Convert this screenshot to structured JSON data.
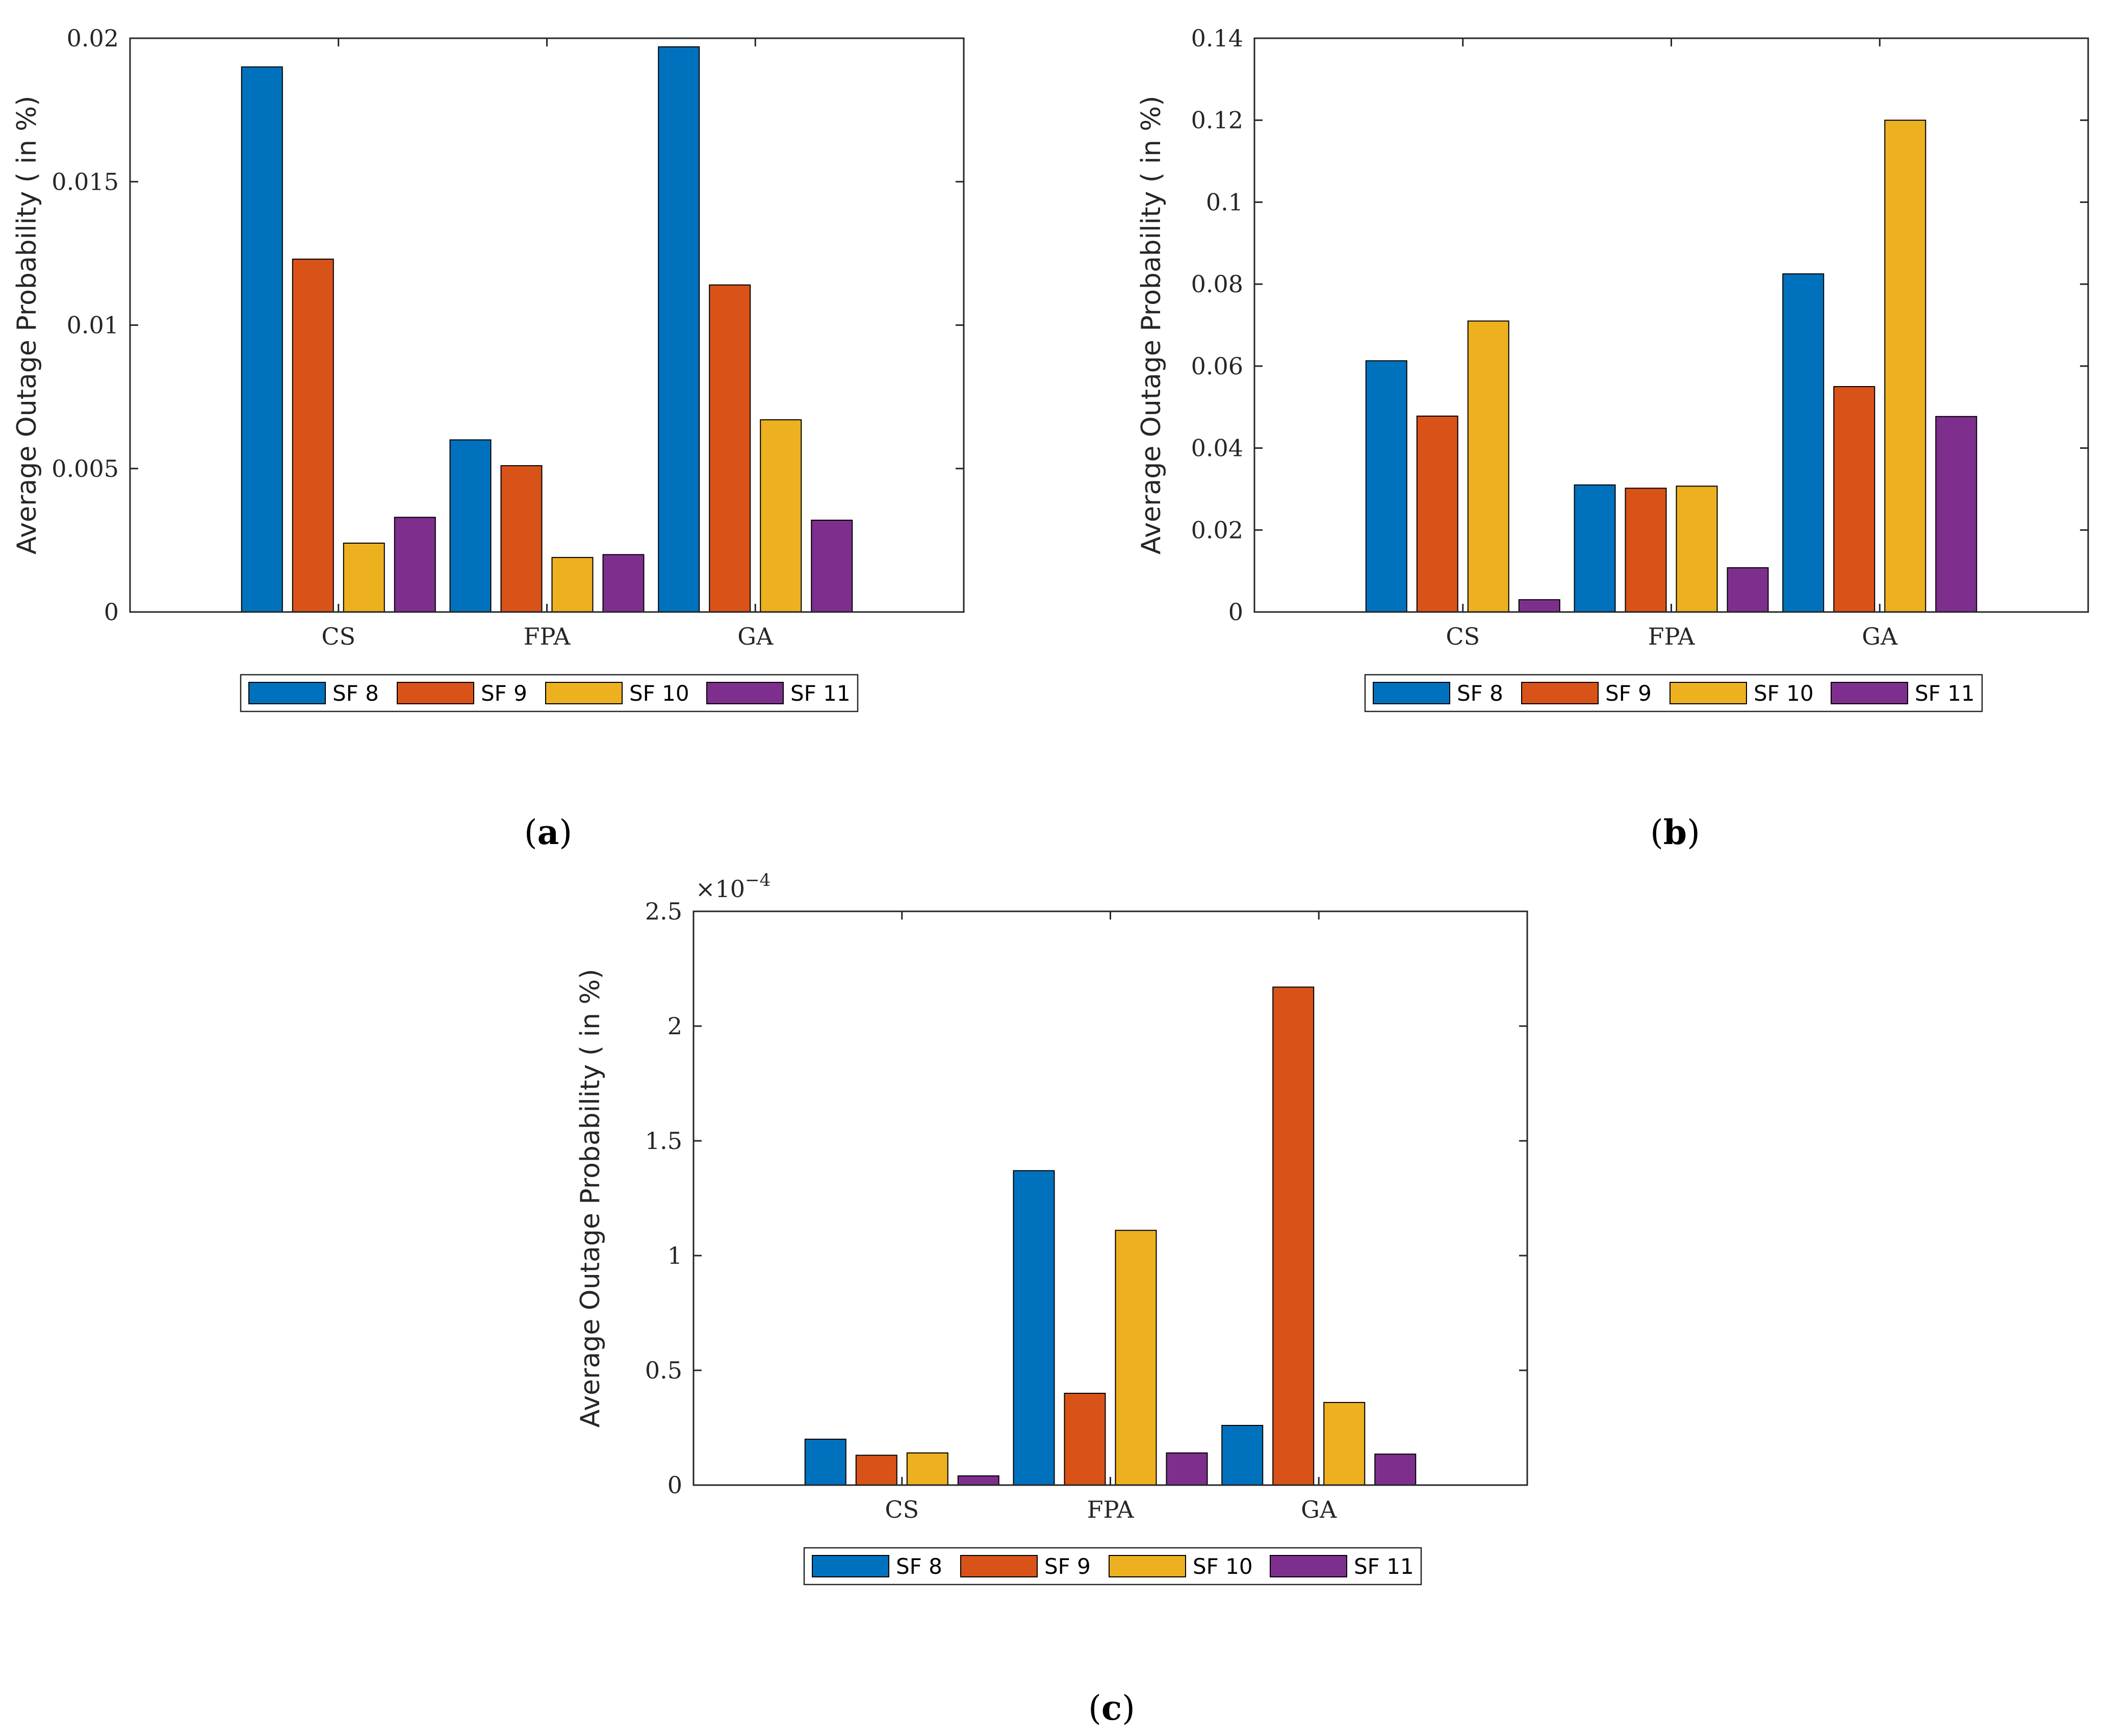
{
  "figure": {
    "panels": [
      "a",
      "b",
      "c"
    ]
  },
  "colors": {
    "SF 8": "#0072BD",
    "SF 9": "#D95319",
    "SF 10": "#EDB120",
    "SF 11": "#7E2F8E",
    "axis": "#262626"
  },
  "chart_data": [
    {
      "panel": "a",
      "type": "bar",
      "caption": {
        "open": "(",
        "letter": "a",
        "close": ")"
      },
      "ylabel": "Average Outage Probability ( in %)",
      "xlabel": "",
      "categories": [
        "CS",
        "FPA",
        "GA"
      ],
      "ylim": [
        0,
        0.02
      ],
      "yticks": [
        0,
        0.005,
        0.01,
        0.015,
        0.02
      ],
      "ytick_labels": [
        "0",
        "0.005",
        "0.01",
        "0.015",
        "0.02"
      ],
      "exponent_label": "",
      "legend_position": "bottom-outside",
      "series": [
        {
          "name": "SF 8",
          "values": [
            0.019,
            0.006,
            0.0197
          ]
        },
        {
          "name": "SF 9",
          "values": [
            0.0123,
            0.0051,
            0.0114
          ]
        },
        {
          "name": "SF 10",
          "values": [
            0.0024,
            0.0019,
            0.0067
          ]
        },
        {
          "name": "SF 11",
          "values": [
            0.0033,
            0.002,
            0.0032
          ]
        }
      ]
    },
    {
      "panel": "b",
      "type": "bar",
      "caption": {
        "open": "(",
        "letter": "b",
        "close": ")"
      },
      "ylabel": "Average Outage Probability ( in %)",
      "xlabel": "",
      "categories": [
        "CS",
        "FPA",
        "GA"
      ],
      "ylim": [
        0,
        0.14
      ],
      "yticks": [
        0,
        0.02,
        0.04,
        0.06,
        0.08,
        0.1,
        0.12,
        0.14
      ],
      "ytick_labels": [
        "0",
        "0.02",
        "0.04",
        "0.06",
        "0.08",
        "0.1",
        "0.12",
        "0.14"
      ],
      "exponent_label": "",
      "legend_position": "bottom-outside",
      "series": [
        {
          "name": "SF 8",
          "values": [
            0.0613,
            0.031,
            0.0825
          ]
        },
        {
          "name": "SF 9",
          "values": [
            0.0478,
            0.0302,
            0.055
          ]
        },
        {
          "name": "SF 10",
          "values": [
            0.071,
            0.0307,
            0.12
          ]
        },
        {
          "name": "SF 11",
          "values": [
            0.003,
            0.0108,
            0.0477
          ]
        }
      ]
    },
    {
      "panel": "c",
      "type": "bar",
      "caption": {
        "open": "(",
        "letter": "c",
        "close": ")"
      },
      "ylabel": "Average Outage Probability ( in %)",
      "xlabel": "",
      "categories": [
        "CS",
        "FPA",
        "GA"
      ],
      "ylim": [
        0,
        2.5
      ],
      "yticks": [
        0,
        0.5,
        1,
        1.5,
        2,
        2.5
      ],
      "ytick_labels": [
        "0",
        "0.5",
        "1",
        "1.5",
        "2",
        "2.5"
      ],
      "exponent_label": {
        "base": "×10",
        "power": "−4"
      },
      "legend_position": "bottom-outside",
      "series": [
        {
          "name": "SF 8",
          "values": [
            0.2,
            1.37,
            0.26
          ]
        },
        {
          "name": "SF 9",
          "values": [
            0.13,
            0.4,
            2.17
          ]
        },
        {
          "name": "SF 10",
          "values": [
            0.14,
            1.11,
            0.36
          ]
        },
        {
          "name": "SF 11",
          "values": [
            0.04,
            0.14,
            0.135
          ]
        }
      ]
    }
  ]
}
